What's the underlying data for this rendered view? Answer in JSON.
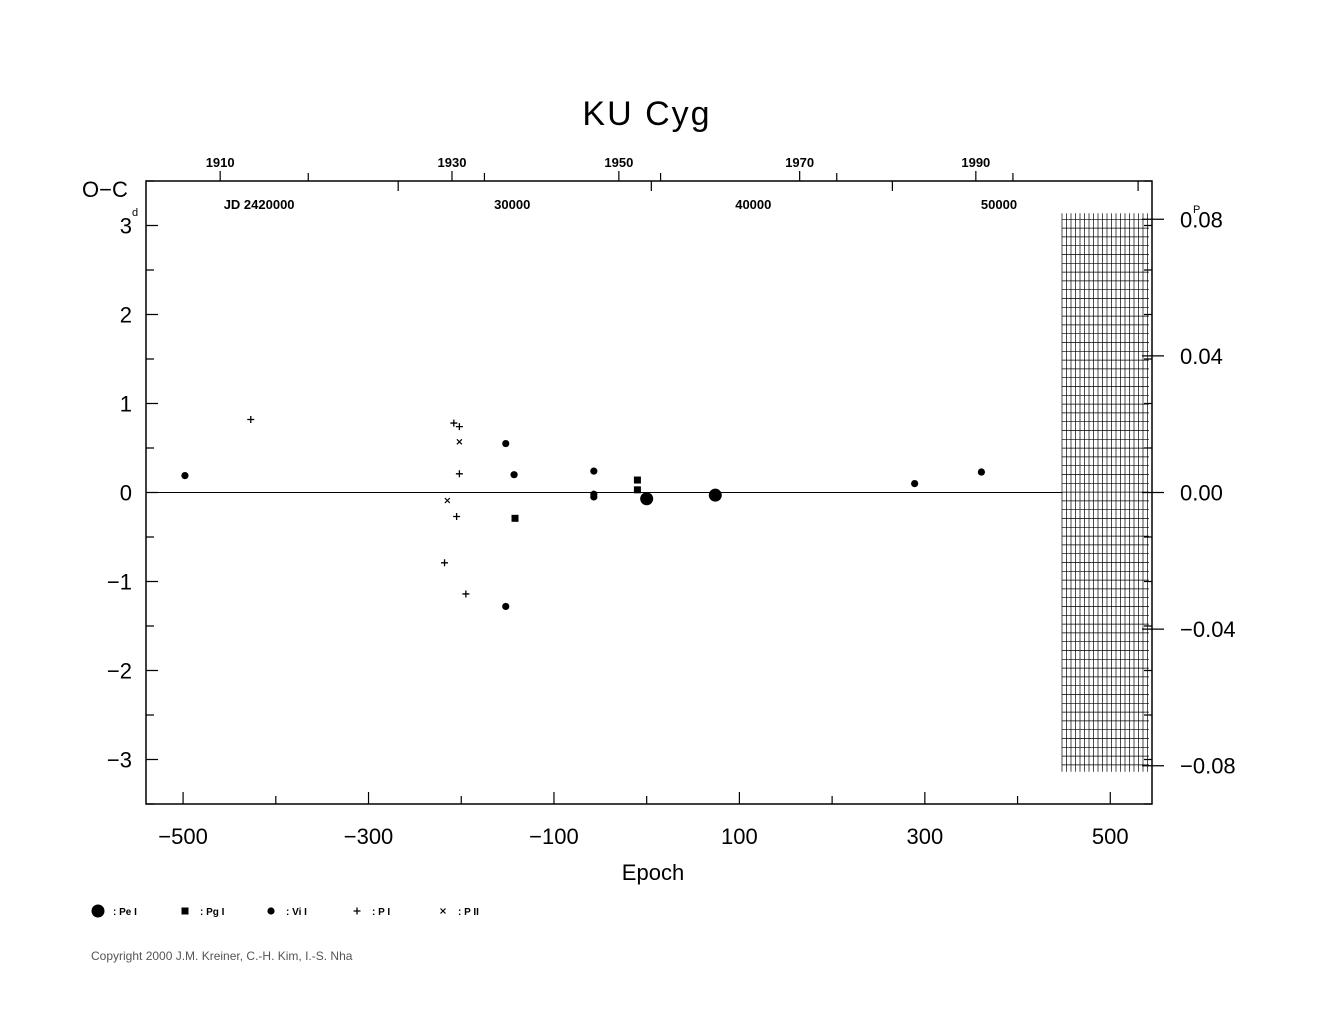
{
  "chart_data": {
    "type": "scatter",
    "title": "KU  Cyg",
    "ylabel": "O−C",
    "ylabel_unit": "d",
    "xlabel": "Epoch",
    "right_unit": "P",
    "xlim": [
      -540,
      545
    ],
    "ylim": [
      -3.5,
      3.5
    ],
    "x_ticks": [
      {
        "v": -500,
        "label": "−500"
      },
      {
        "v": -300,
        "label": "−300"
      },
      {
        "v": -100,
        "label": "−100"
      },
      {
        "v": 100,
        "label": "100"
      },
      {
        "v": 300,
        "label": "300"
      },
      {
        "v": 500,
        "label": "500"
      }
    ],
    "y_ticks": [
      {
        "v": 3,
        "label": "3"
      },
      {
        "v": 2,
        "label": "2"
      },
      {
        "v": 1,
        "label": "1"
      },
      {
        "v": 0,
        "label": "0"
      },
      {
        "v": -1,
        "label": "−1"
      },
      {
        "v": -2,
        "label": "−2"
      },
      {
        "v": -3,
        "label": "−3"
      }
    ],
    "right_ticks": [
      {
        "v": 3.07,
        "label": "0.08"
      },
      {
        "v": 1.535,
        "label": "0.04"
      },
      {
        "v": 0,
        "label": "0.00"
      },
      {
        "v": -1.535,
        "label": "−0.04"
      },
      {
        "v": -3.07,
        "label": "−0.08"
      }
    ],
    "year_ticks": [
      {
        "v": -460,
        "label": "1910"
      },
      {
        "v": -210,
        "label": "1930"
      },
      {
        "v": -30,
        "label": "1950"
      },
      {
        "v": 165,
        "label": "1970"
      },
      {
        "v": 355,
        "label": "1990"
      }
    ],
    "jd_ticks": [
      {
        "v": -418,
        "label": "JD  2420000"
      },
      {
        "v": -145,
        "label": "30000"
      },
      {
        "v": 115,
        "label": "40000"
      },
      {
        "v": 380,
        "label": "50000"
      }
    ],
    "series": [
      {
        "name": "Pe I",
        "marker": "bigdot",
        "points": [
          [
            0,
            -0.07
          ],
          [
            74,
            -0.03
          ]
        ]
      },
      {
        "name": "Pg I",
        "marker": "square",
        "points": [
          [
            -142,
            -0.29
          ],
          [
            -10,
            0.14
          ],
          [
            -10,
            0.03
          ]
        ]
      },
      {
        "name": "Vi I",
        "marker": "dot",
        "points": [
          [
            -498,
            0.19
          ],
          [
            -152,
            0.55
          ],
          [
            -143,
            0.2
          ],
          [
            -152,
            -1.28
          ],
          [
            -57,
            0.24
          ],
          [
            -57,
            -0.02
          ],
          [
            -57,
            -0.05
          ],
          [
            289,
            0.1
          ],
          [
            361,
            0.23
          ]
        ]
      },
      {
        "name": "P I",
        "marker": "plus",
        "points": [
          [
            -427,
            0.82
          ],
          [
            -208,
            0.78
          ],
          [
            -202,
            0.74
          ],
          [
            -202,
            0.21
          ],
          [
            -205,
            -0.27
          ],
          [
            -218,
            -0.79
          ],
          [
            -195,
            -1.14
          ]
        ]
      },
      {
        "name": "P II",
        "marker": "cross",
        "points": [
          [
            -202,
            0.57
          ],
          [
            -215,
            -0.09
          ]
        ]
      }
    ]
  },
  "legend": [
    {
      "marker": "bigdot",
      "label": ": Pe  I"
    },
    {
      "marker": "square",
      "label": ": Pg  I"
    },
    {
      "marker": "dot",
      "label": ": Vi  I"
    },
    {
      "marker": "plus",
      "label": ": P  I"
    },
    {
      "marker": "cross",
      "label": ": P  II"
    }
  ],
  "copyright": "Copyright 2000 J.M. Kreiner, C.-H. Kim, I.-S. Nha"
}
